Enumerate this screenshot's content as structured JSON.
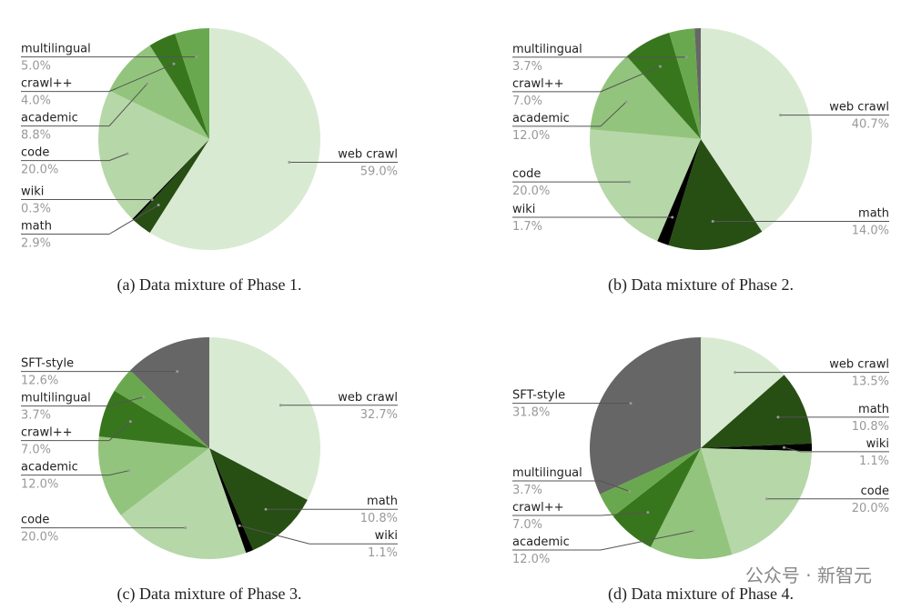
{
  "chart_data": [
    {
      "type": "pie",
      "caption": "(a) Data mixture of Phase 1.",
      "categories": [
        "web crawl",
        "math",
        "wiki",
        "code",
        "academic",
        "crawl++",
        "multilingual"
      ],
      "values": [
        59,
        2.9,
        0.3,
        20,
        8.8,
        4,
        5
      ],
      "value_labels": [
        "59.0%",
        "2.9%",
        "0.3%",
        "20.0%",
        "8.8%",
        "4.0%",
        "5.0%"
      ],
      "colors": [
        "#d9ead3",
        "#274e13",
        "#000000",
        "#b6d7a8",
        "#93c47d",
        "#38761d",
        "#6aa84f"
      ]
    },
    {
      "type": "pie",
      "caption": "(b) Data mixture of Phase 2.",
      "categories": [
        "web crawl",
        "math",
        "wiki",
        "code",
        "academic",
        "crawl++",
        "multilingual",
        null
      ],
      "values": [
        40.7,
        14,
        1.7,
        20,
        12,
        7,
        3.7,
        0.9
      ],
      "value_labels": [
        "40.7%",
        "14.0%",
        "1.7%",
        "20.0%",
        "12.0%",
        "7.0%",
        "3.7%",
        null
      ],
      "colors": [
        "#d9ead3",
        "#274e13",
        "#000000",
        "#b6d7a8",
        "#93c47d",
        "#38761d",
        "#6aa84f",
        "#666666"
      ]
    },
    {
      "type": "pie",
      "caption": "(c) Data mixture of Phase 3.",
      "categories": [
        "web crawl",
        "math",
        "wiki",
        "code",
        "academic",
        "crawl++",
        "multilingual",
        "SFT-style"
      ],
      "values": [
        32.7,
        10.8,
        1.1,
        20,
        12,
        7,
        3.7,
        12.6
      ],
      "value_labels": [
        "32.7%",
        "10.8%",
        "1.1%",
        "20.0%",
        "12.0%",
        "7.0%",
        "3.7%",
        "12.6%"
      ],
      "colors": [
        "#d9ead3",
        "#274e13",
        "#000000",
        "#b6d7a8",
        "#93c47d",
        "#38761d",
        "#6aa84f",
        "#666666"
      ]
    },
    {
      "type": "pie",
      "caption": "(d) Data mixture of Phase 4.",
      "categories": [
        "web crawl",
        "math",
        "wiki",
        "code",
        "academic",
        "crawl++",
        "multilingual",
        "SFT-style"
      ],
      "values": [
        13.5,
        10.8,
        1.1,
        20,
        12,
        7,
        3.7,
        31.8
      ],
      "value_labels": [
        "13.5%",
        "10.8%",
        "1.1%",
        "20.0%",
        "12.0%",
        "7.0%",
        "3.7%",
        "31.8%"
      ],
      "colors": [
        "#d9ead3",
        "#274e13",
        "#000000",
        "#b6d7a8",
        "#93c47d",
        "#38761d",
        "#6aa84f",
        "#666666"
      ]
    }
  ],
  "watermark": "公众号 · 新智元"
}
